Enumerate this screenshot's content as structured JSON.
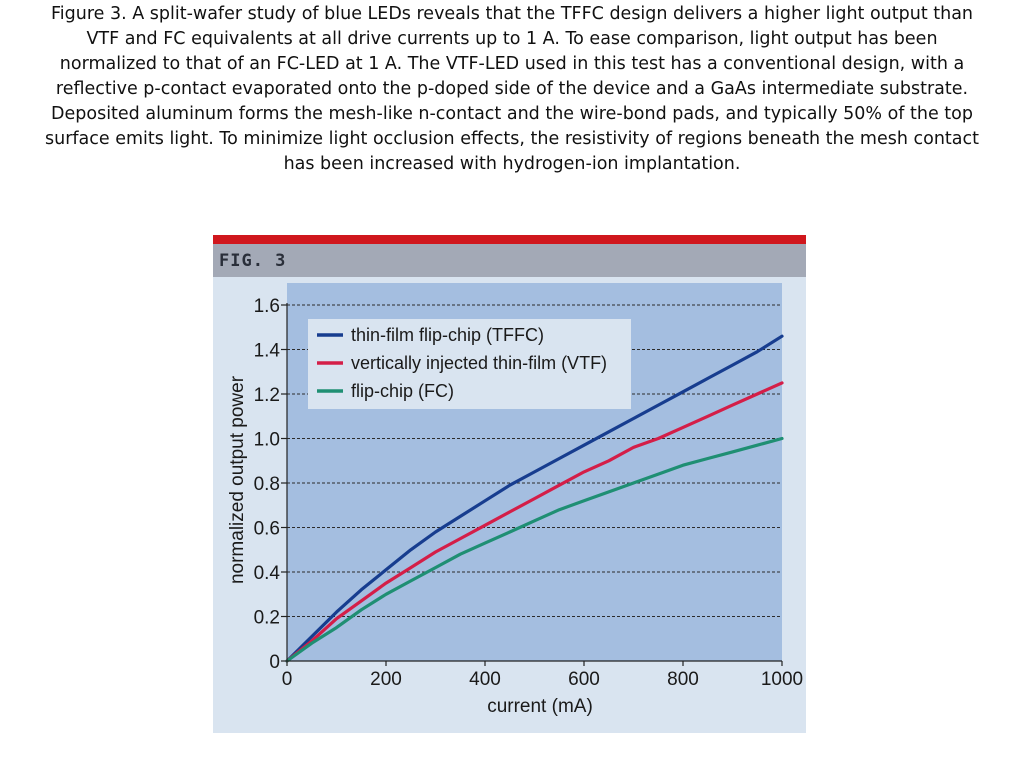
{
  "caption": "Figure 3. A split-wafer study of blue LEDs reveals that the TFFC design delivers a higher light output than VTF and FC equivalents at all drive currents up to 1 A. To ease comparison, light output has been normalized to that of an FC-LED at 1 A. The VTF-LED used in this test has a conventional design, with a reflective p-contact evaporated onto the p-doped side of the device and a GaAs intermediate substrate. Deposited aluminum forms the mesh-like n-contact and the wire-bond pads, and typically 50% of the top surface emits light. To minimize light occlusion effects, the resistivity of regions beneath the mesh contact has been increased with hydrogen-ion implantation.",
  "figure_label": "FIG. 3",
  "colors": {
    "header_band": "#d0171d",
    "header_bar": "#a3a9b6",
    "figure_bg": "#d9e4f0",
    "plot_bg": "#a4bee0",
    "legend_bg": "#d9e4f0"
  },
  "chart_data": {
    "type": "line",
    "xlabel": "current (mA)",
    "ylabel": "normalized output power",
    "xlim": [
      0,
      1000
    ],
    "ylim": [
      0,
      1.6
    ],
    "x_ticks": [
      "0",
      "200",
      "400",
      "600",
      "800",
      "1000"
    ],
    "y_ticks": [
      "0",
      "0.2",
      "0.4",
      "0.6",
      "0.8",
      "1.0",
      "1.2",
      "1.4",
      "1.6"
    ],
    "grid": "horizontal dashed",
    "legend_position": "top-left",
    "x": [
      0,
      50,
      100,
      150,
      200,
      250,
      300,
      350,
      400,
      450,
      500,
      550,
      600,
      650,
      700,
      750,
      800,
      850,
      900,
      950,
      1000
    ],
    "series": [
      {
        "name": "thin-film flip-chip (TFFC)",
        "color": "#173d8f",
        "values": [
          0,
          0.11,
          0.22,
          0.32,
          0.41,
          0.5,
          0.58,
          0.65,
          0.72,
          0.79,
          0.85,
          0.91,
          0.97,
          1.03,
          1.09,
          1.15,
          1.21,
          1.27,
          1.33,
          1.39,
          1.46
        ]
      },
      {
        "name": "vertically injected thin-film (VTF)",
        "color": "#d41e48",
        "values": [
          0,
          0.09,
          0.19,
          0.27,
          0.35,
          0.42,
          0.49,
          0.55,
          0.61,
          0.67,
          0.73,
          0.79,
          0.85,
          0.9,
          0.96,
          1.0,
          1.05,
          1.1,
          1.15,
          1.2,
          1.25
        ]
      },
      {
        "name": "flip-chip (FC)",
        "color": "#1f8f73",
        "values": [
          0,
          0.08,
          0.15,
          0.23,
          0.3,
          0.36,
          0.42,
          0.48,
          0.53,
          0.58,
          0.63,
          0.68,
          0.72,
          0.76,
          0.8,
          0.84,
          0.88,
          0.91,
          0.94,
          0.97,
          1.0
        ]
      }
    ]
  }
}
